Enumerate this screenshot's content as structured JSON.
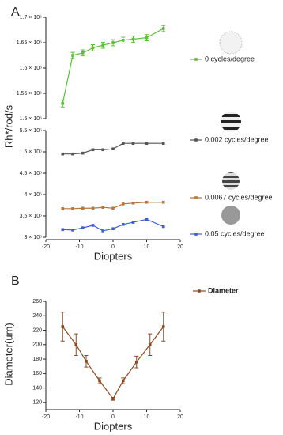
{
  "chart_data": [
    {
      "type": "line",
      "panel_label": "A",
      "x_label": "Diopters",
      "y_label": "Rh*/rod/s",
      "xlim": [
        -20,
        20
      ],
      "xticks": [
        -20,
        -10,
        0,
        10,
        20
      ],
      "x": [
        -15,
        -12,
        -9,
        -6,
        -3,
        0,
        3,
        6,
        10,
        15
      ],
      "y_segments": [
        {
          "ylim": [
            300000,
            550000
          ],
          "yticks": [
            {
              "value": 300000,
              "label": "3 × 10⁵"
            },
            {
              "value": 350000,
              "label": "3.5 × 10⁵"
            },
            {
              "value": 400000,
              "label": "4 × 10⁵"
            },
            {
              "value": 450000,
              "label": "4.5 × 10⁵"
            },
            {
              "value": 500000,
              "label": "5 × 10⁵"
            },
            {
              "value": 550000,
              "label": "5.5 × 10⁵"
            }
          ]
        },
        {
          "ylim": [
            1500000,
            1700000
          ],
          "yticks": [
            {
              "value": 1500000,
              "label": "1.5 × 10⁶"
            },
            {
              "value": 1550000,
              "label": "1.55 × 10⁶"
            },
            {
              "value": 1600000,
              "label": "1.6 × 10⁶"
            },
            {
              "value": 1650000,
              "label": "1.65 × 10⁶"
            },
            {
              "value": 1700000,
              "label": "1.7 × 10⁶"
            }
          ]
        }
      ],
      "series": [
        {
          "name": "0  cycles/degree",
          "color": "#5cbf3c",
          "segment": 1,
          "values": [
            1530000,
            1625000,
            1630000,
            1640000,
            1645000,
            1650000,
            1655000,
            1657000,
            1660000,
            1678000
          ],
          "errors": [
            7000,
            6000,
            6000,
            6000,
            6000,
            6000,
            6000,
            6000,
            6000,
            6000
          ]
        },
        {
          "name": "0.002 cycles/degree",
          "color": "#555555",
          "segment": 0,
          "values": [
            495000,
            495000,
            497000,
            505000,
            505000,
            507000,
            520000,
            520000,
            520000,
            520000
          ]
        },
        {
          "name": "0.0067 cycles/degree",
          "color": "#b5773b",
          "segment": 0,
          "values": [
            367000,
            367000,
            368000,
            368000,
            370000,
            368000,
            378000,
            380000,
            382000,
            382000
          ]
        },
        {
          "name": "0.05 cycles/degree",
          "color": "#3b5fd1",
          "segment": 0,
          "values": [
            318000,
            317000,
            322000,
            328000,
            315000,
            320000,
            330000,
            335000,
            342000,
            325000
          ]
        }
      ]
    },
    {
      "type": "line",
      "panel_label": "B",
      "x_label": "Diopters",
      "y_label": "Diameter(um)",
      "xlim": [
        -20,
        20
      ],
      "xticks": [
        -20,
        -10,
        0,
        10,
        20
      ],
      "ylim": [
        110,
        260
      ],
      "yticks": [
        120,
        140,
        160,
        180,
        200,
        220,
        240,
        260
      ],
      "x": [
        -15,
        -11,
        -8,
        -4,
        0,
        3,
        7,
        11,
        15
      ],
      "series": [
        {
          "name": "Diameter",
          "color": "#8b4a22",
          "values": [
            225,
            200,
            177,
            150,
            125,
            150,
            176,
            200,
            225
          ],
          "errors": [
            20,
            15,
            8,
            4,
            2,
            4,
            8,
            15,
            20
          ]
        }
      ]
    }
  ]
}
